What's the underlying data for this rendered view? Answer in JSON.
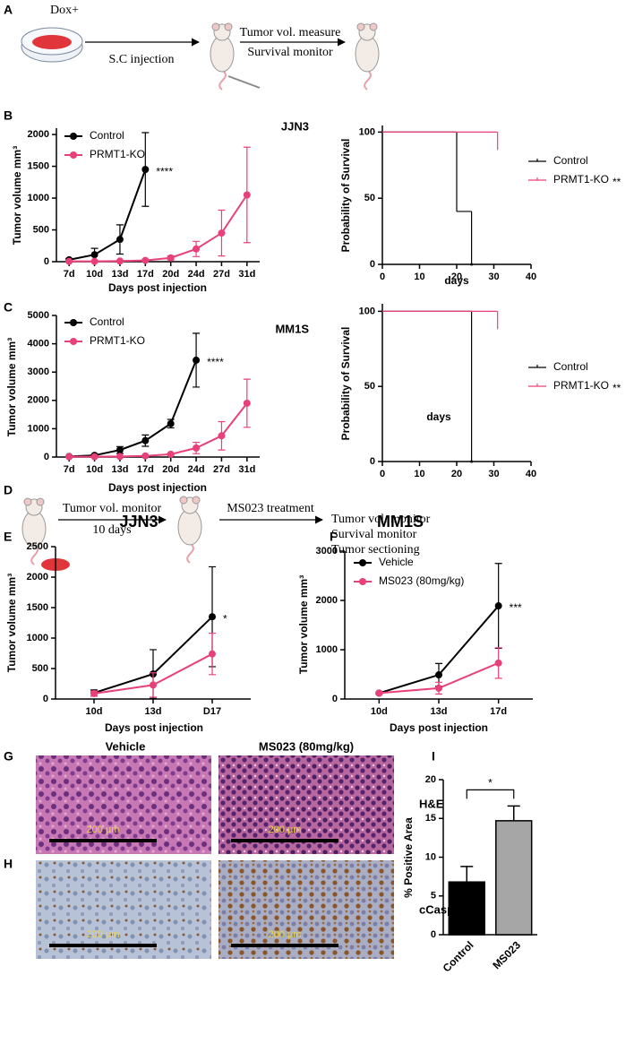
{
  "panel_labels": [
    "A",
    "B",
    "C",
    "D",
    "E",
    "F",
    "G",
    "H",
    "I"
  ],
  "diagram_a": {
    "dish_label": "Dox+",
    "step1": "S.C injection",
    "step2_top": "Tumor vol. measure",
    "step2_bottom": "Survival monitor"
  },
  "diagram_d": {
    "step1_top": "Tumor vol. monitor",
    "step1_bottom": "10 days",
    "step2": "MS023 treatment",
    "outcomes": [
      "Tumor vol. monitor",
      "Survival monitor",
      "Tumor sectioning"
    ]
  },
  "histology": {
    "columns": [
      "Vehicle",
      "MS023 (80mg/kg)"
    ],
    "rows": [
      "H&E",
      "cCasp3"
    ],
    "scale_label": "200 µm"
  },
  "chart_data": [
    {
      "type": "line",
      "title": "JJN3",
      "xlabel": "Days post injection",
      "ylabel": "Tumor volume mm³",
      "categories": [
        "7d",
        "10d",
        "13d",
        "17d",
        "20d",
        "24d",
        "27d",
        "31d"
      ],
      "series": [
        {
          "name": "Control",
          "color": "#000000",
          "values": [
            30,
            110,
            350,
            1450,
            null,
            null,
            null,
            null
          ],
          "errors": [
            20,
            100,
            230,
            580,
            null,
            null,
            null,
            null
          ]
        },
        {
          "name": "PRMT1-KO",
          "color": "#e8407a",
          "values": [
            5,
            5,
            10,
            20,
            60,
            200,
            450,
            1050
          ],
          "errors": [
            5,
            5,
            10,
            15,
            30,
            120,
            360,
            750
          ]
        }
      ],
      "ylim": [
        0,
        2100
      ],
      "yticks": [
        0,
        500,
        1000,
        1500,
        2000
      ],
      "annotation": "****",
      "legend": "upper left"
    },
    {
      "type": "step",
      "xlabel": "days",
      "ylabel": "Probability of Survival",
      "series": [
        {
          "name": "Control",
          "color": "#000000",
          "x": [
            0,
            20,
            24
          ],
          "values": [
            100,
            40,
            0
          ]
        },
        {
          "name": "PRMT1-KO",
          "color": "#e8407a",
          "x": [
            0,
            31
          ],
          "values": [
            100,
            100
          ],
          "censored": true
        }
      ],
      "xlim": [
        0,
        40
      ],
      "xticks": [
        0,
        10,
        20,
        30,
        40
      ],
      "ylim": [
        0,
        105
      ],
      "yticks": [
        0,
        50,
        100
      ],
      "annotation": "**",
      "legend": "right"
    },
    {
      "type": "line",
      "title": "MM1S",
      "xlabel": "Days post injection",
      "ylabel": "Tumor volume mm³",
      "categories": [
        "7d",
        "10d",
        "13d",
        "17d",
        "20d",
        "24d",
        "27d",
        "31d"
      ],
      "series": [
        {
          "name": "Control",
          "color": "#000000",
          "values": [
            20,
            60,
            250,
            580,
            1180,
            3420,
            null,
            null
          ],
          "errors": [
            10,
            30,
            120,
            200,
            150,
            950,
            null,
            null
          ]
        },
        {
          "name": "PRMT1-KO",
          "color": "#e8407a",
          "values": [
            10,
            10,
            20,
            40,
            100,
            320,
            750,
            1900
          ],
          "errors": [
            5,
            5,
            10,
            20,
            40,
            200,
            500,
            850
          ]
        }
      ],
      "ylim": [
        0,
        5000
      ],
      "yticks": [
        0,
        1000,
        2000,
        3000,
        4000,
        5000
      ],
      "annotation": "****",
      "legend": "upper left"
    },
    {
      "type": "step",
      "xlabel": "days",
      "ylabel": "Probability of Survival",
      "series": [
        {
          "name": "Control",
          "color": "#000000",
          "x": [
            0,
            24
          ],
          "values": [
            100,
            0
          ]
        },
        {
          "name": "PRMT1-KO",
          "color": "#e8407a",
          "x": [
            0,
            31
          ],
          "values": [
            100,
            100
          ],
          "censored": true
        }
      ],
      "xlim": [
        0,
        40
      ],
      "xticks": [
        0,
        10,
        20,
        30,
        40
      ],
      "ylim": [
        0,
        105
      ],
      "yticks": [
        0,
        50,
        100
      ],
      "annotation": "**",
      "legend": "right"
    },
    {
      "type": "line",
      "title": "JJN3",
      "xlabel": "Days post injection",
      "ylabel": "Tumor volume mm³",
      "categories": [
        "10d",
        "13d",
        "D17"
      ],
      "series": [
        {
          "color": "#000000",
          "values": [
            100,
            410,
            1350
          ],
          "errors": [
            50,
            400,
            820
          ]
        },
        {
          "color": "#e8407a",
          "values": [
            90,
            230,
            740
          ],
          "errors": [
            40,
            200,
            340
          ]
        }
      ],
      "ylim": [
        0,
        2500
      ],
      "yticks": [
        0,
        500,
        1000,
        1500,
        2000,
        2500
      ],
      "annotation": "*"
    },
    {
      "type": "line",
      "title": "MM1S",
      "xlabel": "Days post injection",
      "ylabel": "Tumor volume mm³",
      "categories": [
        "10d",
        "13d",
        "17d"
      ],
      "series": [
        {
          "name": "Vehicle",
          "color": "#000000",
          "values": [
            120,
            490,
            1890
          ],
          "errors": [
            20,
            230,
            860
          ]
        },
        {
          "name": "MS023 (80mg/kg)",
          "color": "#e8407a",
          "values": [
            120,
            220,
            730
          ],
          "errors": [
            20,
            120,
            310
          ]
        }
      ],
      "ylim": [
        0,
        3000
      ],
      "yticks": [
        0,
        1000,
        2000,
        3000
      ],
      "annotation": "***",
      "legend": "upper left"
    },
    {
      "type": "bar",
      "ylabel": "% Positive Area",
      "categories": [
        "Control",
        "MS023"
      ],
      "values": [
        6.8,
        14.7
      ],
      "errors": [
        2.0,
        1.9
      ],
      "colors": [
        "#000000",
        "#a6a6a6"
      ],
      "ylim": [
        0,
        20
      ],
      "yticks": [
        0,
        5,
        10,
        15,
        20
      ],
      "annotation": "*"
    }
  ]
}
